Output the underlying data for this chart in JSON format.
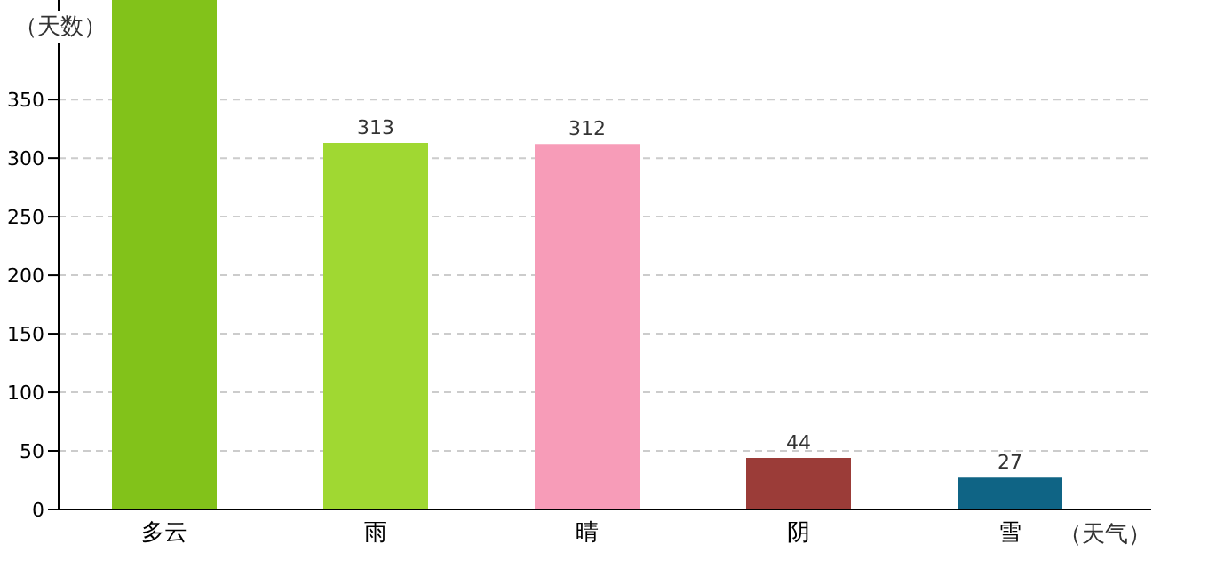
{
  "chart_data": {
    "type": "bar",
    "xlabel": "（天气）",
    "ylabel": "（天数）",
    "categories": [
      "多云",
      "雨",
      "晴",
      "阴",
      "雪"
    ],
    "values": [
      435,
      313,
      312,
      44,
      27
    ],
    "colors": [
      "#82c21a",
      "#a0d832",
      "#f79cb8",
      "#9b3c38",
      "#0f6485"
    ],
    "value_labels": [
      null,
      "313",
      "312",
      "44",
      "27"
    ],
    "ylim": [
      0,
      435
    ],
    "yticks": [
      0,
      50,
      100,
      150,
      200,
      250,
      300,
      350
    ],
    "grid": "y"
  }
}
